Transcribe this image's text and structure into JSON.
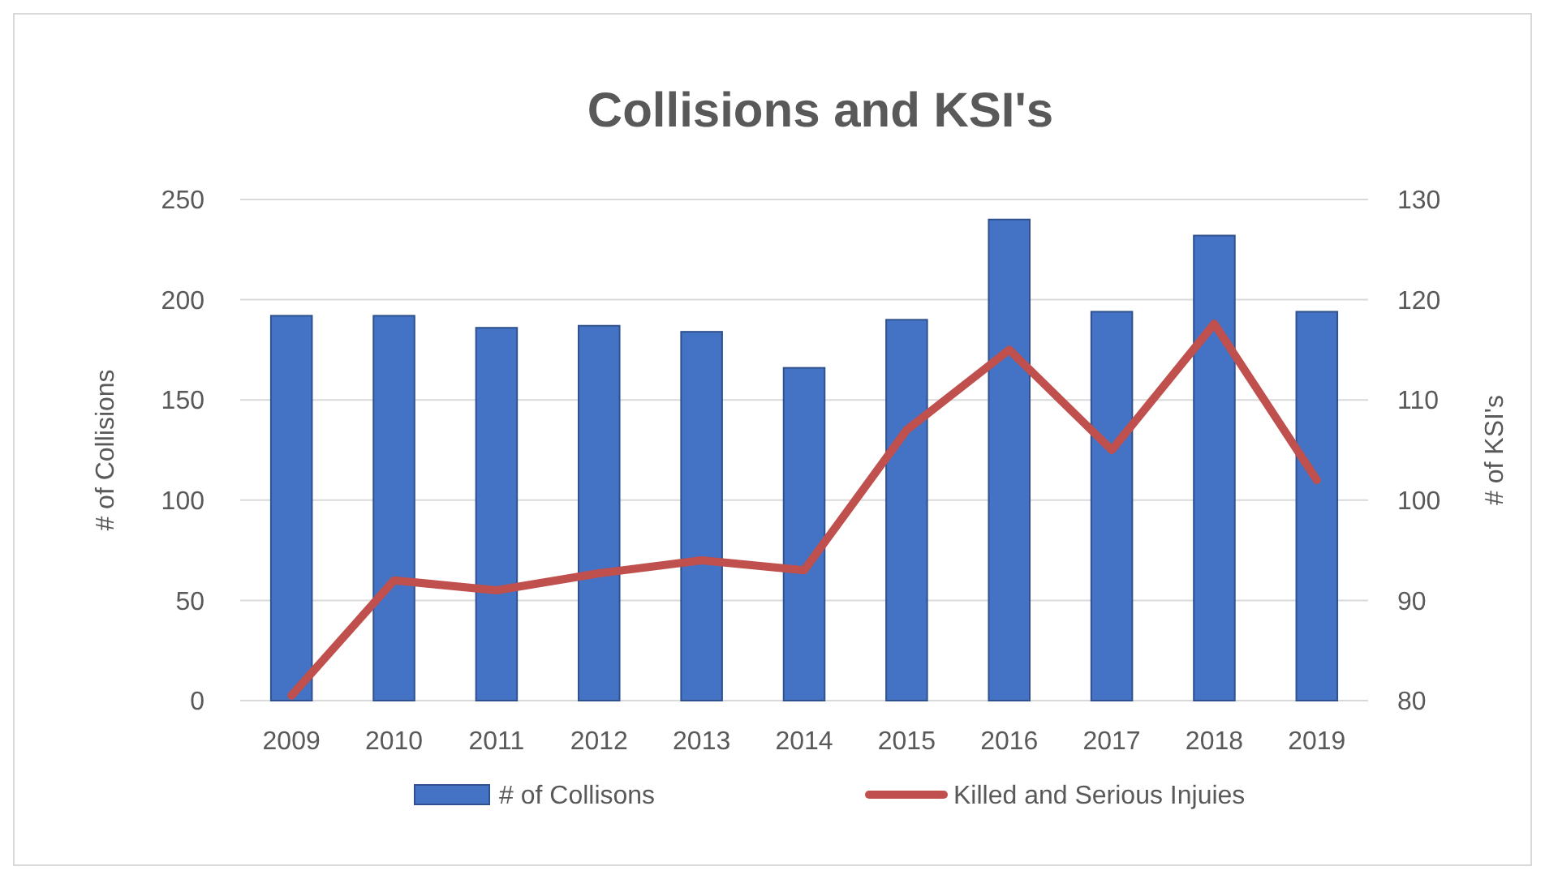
{
  "chart_data": {
    "type": "bar",
    "title": "Collisions and KSI's",
    "ylabel": "# of Collisions",
    "y2label": "# of KSI's",
    "categories": [
      "2009",
      "2010",
      "2011",
      "2012",
      "2013",
      "2014",
      "2015",
      "2016",
      "2017",
      "2018",
      "2019"
    ],
    "series": [
      {
        "name": "# of Collisons",
        "color": "#4472c4",
        "values": [
          192,
          192,
          186,
          187,
          184,
          166,
          190,
          240,
          194,
          232,
          194
        ]
      },
      {
        "name": "Killed and Serious Injuies",
        "type": "line",
        "axis": "y2",
        "color": "#c0504d",
        "values": [
          80.5,
          92,
          91,
          92.7,
          94,
          93,
          107,
          115,
          105,
          117.6,
          102
        ]
      }
    ],
    "ylim": [
      0,
      250
    ],
    "yticks": [
      0,
      50,
      100,
      150,
      200,
      250
    ],
    "y2lim": [
      80,
      130
    ],
    "y2ticks": [
      80,
      90,
      100,
      110,
      120,
      130
    ],
    "grid": "y",
    "legend": "bottom",
    "marker": "none",
    "line_style": "solid"
  }
}
